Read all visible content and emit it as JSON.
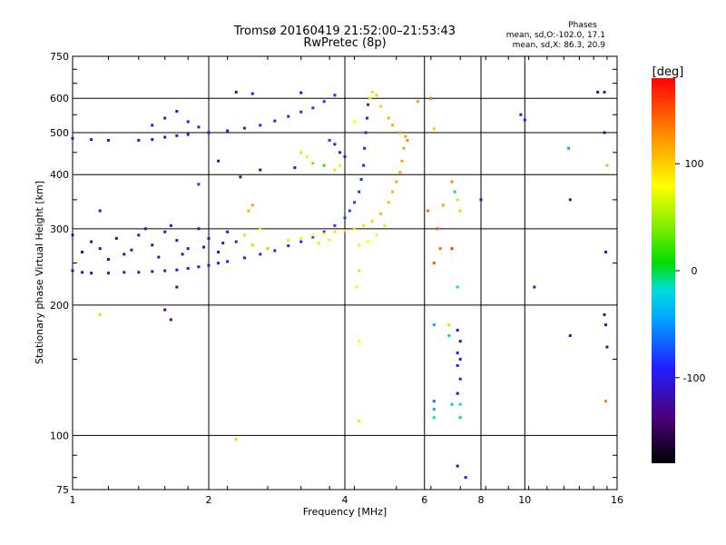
{
  "chart_data": {
    "type": "scatter",
    "title": "Tromsø 20160419 21:52:00–21:53:43",
    "subtitle": "RwPretec (8p)",
    "xlabel": "Frequency [MHz]",
    "ylabel": "Stationary phase Virtual Height [km]",
    "x_scale": "log2",
    "y_scale": "log",
    "xlim": [
      1,
      16
    ],
    "ylim": [
      75,
      750
    ],
    "x_ticks": [
      1,
      2,
      4,
      6,
      8,
      10,
      16
    ],
    "x_grid": [
      2,
      4,
      6,
      8,
      10
    ],
    "y_ticks": [
      75,
      100,
      200,
      300,
      400,
      500,
      600,
      750
    ],
    "y_grid": [
      100,
      200,
      300,
      400,
      500,
      600
    ],
    "grid": true,
    "stats": {
      "heading": "Phases",
      "line1": "mean, sd,O:-102.0, 17.1",
      "line2": "mean, sd,X:  86.3, 20.9"
    },
    "colorbar": {
      "label": "[deg]",
      "range": [
        -180,
        180
      ],
      "ticks": [
        {
          "value": 100,
          "label": "100"
        },
        {
          "value": 0,
          "label": "0"
        },
        {
          "value": -100,
          "label": "-100"
        }
      ]
    },
    "series": [
      {
        "points": [
          [
            1.0,
            240,
            -120
          ],
          [
            1.05,
            238,
            -118
          ],
          [
            1.1,
            237,
            -115
          ],
          [
            1.2,
            237,
            -112
          ],
          [
            1.3,
            238,
            -110
          ],
          [
            1.4,
            238,
            -108
          ],
          [
            1.5,
            239,
            -106
          ],
          [
            1.6,
            240,
            -104
          ],
          [
            1.7,
            241,
            -102
          ],
          [
            1.8,
            243,
            -100
          ],
          [
            1.9,
            245,
            -100
          ],
          [
            2.0,
            247,
            -100
          ],
          [
            2.1,
            250,
            -98
          ],
          [
            2.2,
            252,
            -98
          ],
          [
            2.4,
            257,
            -96
          ],
          [
            2.6,
            262,
            -94
          ],
          [
            2.8,
            267,
            -92
          ],
          [
            3.0,
            274,
            -90
          ],
          [
            3.2,
            280,
            -88
          ],
          [
            3.4,
            287,
            -86
          ],
          [
            3.6,
            295,
            -84
          ],
          [
            3.8,
            305,
            -82
          ],
          [
            4.0,
            318,
            -80
          ],
          [
            4.1,
            330,
            -80
          ],
          [
            4.2,
            345,
            -80
          ],
          [
            4.3,
            365,
            -82
          ],
          [
            4.35,
            390,
            -84
          ],
          [
            4.4,
            420,
            -86
          ],
          [
            4.42,
            460,
            -88
          ],
          [
            4.45,
            500,
            -90
          ],
          [
            4.48,
            540,
            -92
          ],
          [
            4.5,
            580,
            -94
          ]
        ]
      },
      {
        "points": [
          [
            1.0,
            290,
            -130
          ],
          [
            1.1,
            280,
            -128
          ],
          [
            1.15,
            270,
            -126
          ],
          [
            1.25,
            285,
            -124
          ],
          [
            1.3,
            262,
            -122
          ],
          [
            1.4,
            290,
            -120
          ],
          [
            1.5,
            275,
            -118
          ],
          [
            1.6,
            295,
            -116
          ],
          [
            1.7,
            282,
            -114
          ],
          [
            1.8,
            270,
            -112
          ],
          [
            1.9,
            300,
            -110
          ],
          [
            2.0,
            285,
            -108
          ],
          [
            2.1,
            265,
            -106
          ],
          [
            2.2,
            295,
            -104
          ],
          [
            2.3,
            280,
            -102
          ],
          [
            1.2,
            255,
            -130
          ],
          [
            1.35,
            268,
            -126
          ],
          [
            1.55,
            258,
            -122
          ],
          [
            1.75,
            262,
            -118
          ],
          [
            1.95,
            272,
            -114
          ],
          [
            2.15,
            278,
            -110
          ],
          [
            1.05,
            265,
            -128
          ],
          [
            1.45,
            300,
            -120
          ],
          [
            1.65,
            305,
            -116
          ]
        ]
      },
      {
        "points": [
          [
            1.0,
            485,
            -110
          ],
          [
            1.1,
            482,
            -112
          ],
          [
            1.2,
            480,
            -110
          ],
          [
            1.4,
            480,
            -108
          ],
          [
            1.5,
            482,
            -106
          ],
          [
            1.6,
            488,
            -104
          ],
          [
            1.7,
            492,
            -102
          ],
          [
            1.8,
            495,
            -100
          ],
          [
            2.0,
            500,
            -98
          ],
          [
            2.2,
            505,
            -96
          ],
          [
            2.4,
            512,
            -94
          ],
          [
            2.6,
            520,
            -92
          ],
          [
            2.8,
            532,
            -90
          ],
          [
            3.0,
            545,
            -88
          ],
          [
            3.2,
            558,
            -86
          ],
          [
            3.4,
            570,
            -86
          ],
          [
            3.6,
            590,
            -86
          ],
          [
            3.8,
            610,
            -88
          ],
          [
            1.6,
            540,
            -100
          ],
          [
            1.7,
            560,
            -104
          ],
          [
            1.8,
            530,
            -96
          ],
          [
            1.5,
            520,
            -100
          ],
          [
            1.9,
            515,
            -98
          ]
        ]
      },
      {
        "points": [
          [
            2.3,
            620,
            -120
          ],
          [
            2.5,
            615,
            -110
          ],
          [
            3.2,
            618,
            -115
          ],
          [
            2.1,
            430,
            -120
          ],
          [
            2.35,
            395,
            -125
          ],
          [
            2.6,
            410,
            -120
          ],
          [
            3.1,
            415,
            -110
          ],
          [
            1.9,
            380,
            -80
          ],
          [
            1.7,
            220,
            -120
          ],
          [
            1.6,
            195,
            -130
          ],
          [
            1.65,
            185,
            -125
          ],
          [
            1.15,
            330,
            -110
          ]
        ]
      },
      {
        "points": [
          [
            3.7,
            480,
            -80
          ],
          [
            3.8,
            470,
            -90
          ],
          [
            3.9,
            450,
            -95
          ],
          [
            4.0,
            440,
            -100
          ],
          [
            3.6,
            420,
            20
          ],
          [
            3.8,
            410,
            60
          ],
          [
            3.9,
            420,
            70
          ],
          [
            3.3,
            440,
            70
          ],
          [
            3.2,
            450,
            60
          ],
          [
            3.4,
            425,
            40
          ]
        ]
      },
      {
        "points": [
          [
            3.0,
            282,
            70
          ],
          [
            3.2,
            285,
            75
          ],
          [
            3.4,
            290,
            80
          ],
          [
            3.6,
            292,
            85
          ],
          [
            3.8,
            295,
            88
          ],
          [
            4.0,
            297,
            90
          ],
          [
            4.2,
            300,
            92
          ],
          [
            4.4,
            305,
            95
          ],
          [
            4.6,
            312,
            100
          ],
          [
            4.8,
            325,
            105
          ],
          [
            5.0,
            345,
            110
          ],
          [
            5.1,
            365,
            112
          ],
          [
            5.2,
            385,
            114
          ],
          [
            5.3,
            405,
            116
          ],
          [
            5.35,
            430,
            118
          ],
          [
            5.4,
            460,
            120
          ],
          [
            5.45,
            490,
            120
          ],
          [
            4.3,
            275,
            75
          ],
          [
            4.5,
            280,
            80
          ],
          [
            4.7,
            290,
            85
          ],
          [
            4.9,
            305,
            90
          ],
          [
            3.5,
            278,
            65
          ],
          [
            3.7,
            283,
            70
          ],
          [
            2.4,
            290,
            60
          ],
          [
            2.5,
            275,
            55
          ],
          [
            2.6,
            300,
            70
          ],
          [
            2.7,
            270,
            50
          ],
          [
            2.45,
            330,
            110
          ],
          [
            2.5,
            340,
            120
          ]
        ]
      },
      {
        "points": [
          [
            4.6,
            620,
            95
          ],
          [
            4.7,
            610,
            100
          ],
          [
            4.55,
            600,
            85
          ],
          [
            4.8,
            575,
            100
          ],
          [
            5.0,
            540,
            110
          ],
          [
            5.1,
            520,
            115
          ],
          [
            5.3,
            500,
            125
          ],
          [
            5.5,
            480,
            130
          ],
          [
            4.2,
            530,
            80
          ],
          [
            5.8,
            590,
            120
          ]
        ]
      },
      {
        "points": [
          [
            6.2,
            600,
            140
          ],
          [
            6.3,
            510,
            100
          ],
          [
            6.1,
            330,
            140
          ],
          [
            6.4,
            300,
            150
          ],
          [
            6.6,
            340,
            120
          ],
          [
            6.9,
            385,
            130
          ],
          [
            7.0,
            365,
            -10
          ],
          [
            7.1,
            350,
            60
          ],
          [
            7.2,
            330,
            100
          ],
          [
            6.3,
            250,
            150
          ],
          [
            6.5,
            270,
            140
          ],
          [
            6.9,
            270,
            160
          ],
          [
            7.1,
            220,
            -20
          ],
          [
            6.3,
            180,
            -40
          ],
          [
            6.8,
            180,
            60
          ],
          [
            6.8,
            170,
            -10
          ],
          [
            7.1,
            175,
            -100
          ],
          [
            7.2,
            165,
            -120
          ],
          [
            7.1,
            155,
            -100
          ],
          [
            7.2,
            150,
            -110
          ],
          [
            7.1,
            145,
            -90
          ],
          [
            7.2,
            135,
            -100
          ],
          [
            7.1,
            125,
            -110
          ],
          [
            6.3,
            120,
            -60
          ],
          [
            6.3,
            115,
            -40
          ],
          [
            6.9,
            118,
            -30
          ],
          [
            7.2,
            118,
            -20
          ],
          [
            6.3,
            110,
            -20
          ],
          [
            7.2,
            110,
            -10
          ],
          [
            7.1,
            85,
            -120
          ],
          [
            7.4,
            80,
            -110
          ],
          [
            8.0,
            350,
            -120
          ],
          [
            9.8,
            550,
            -100
          ],
          [
            10.0,
            535,
            -90
          ],
          [
            10.5,
            220,
            -100
          ],
          [
            12.5,
            460,
            -40
          ],
          [
            12.6,
            350,
            -120
          ],
          [
            12.6,
            170,
            -120
          ],
          [
            15.0,
            620,
            -110
          ],
          [
            15.0,
            500,
            -130
          ],
          [
            15.2,
            420,
            110
          ],
          [
            15.0,
            190,
            -130
          ],
          [
            15.1,
            180,
            -120
          ],
          [
            15.2,
            160,
            -120
          ],
          [
            15.1,
            120,
            130
          ],
          [
            15.1,
            265,
            -100
          ],
          [
            14.5,
            620,
            -120
          ]
        ]
      },
      {
        "points": [
          [
            4.3,
            240,
            60
          ],
          [
            4.25,
            220,
            70
          ],
          [
            4.3,
            165,
            80
          ],
          [
            4.3,
            108,
            90
          ],
          [
            2.3,
            98,
            100
          ],
          [
            1.15,
            190,
            100
          ]
        ]
      }
    ]
  }
}
